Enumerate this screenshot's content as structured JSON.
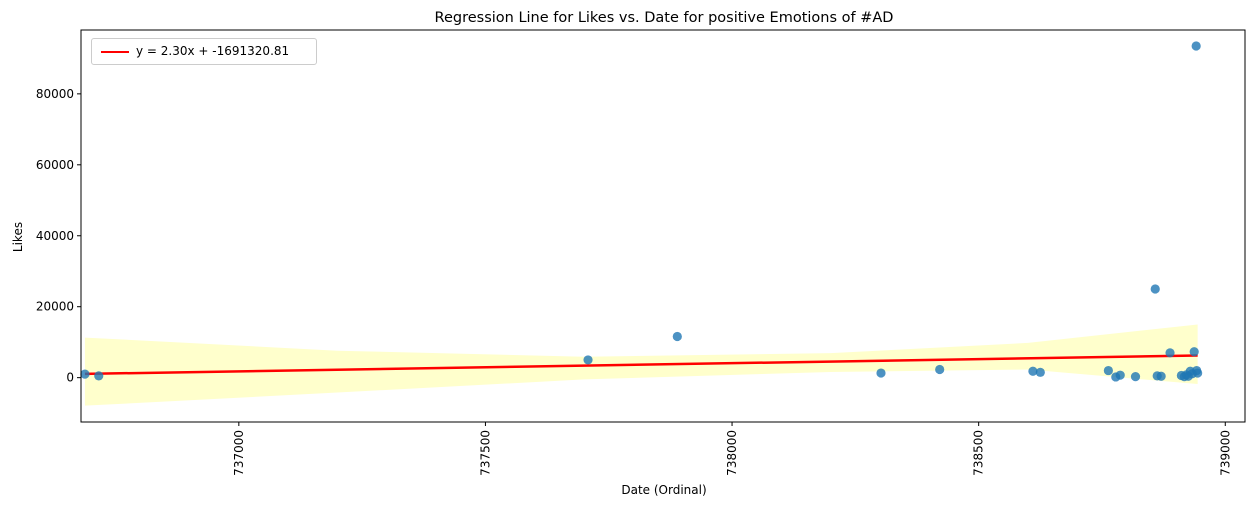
{
  "chart_data": {
    "type": "scatter",
    "title": "Regression Line for Likes vs. Date for positive Emotions of #AD",
    "xlabel": "Date (Ordinal)",
    "ylabel": "Likes",
    "xlim": [
      736680,
      739040
    ],
    "ylim": [
      -12500,
      98000
    ],
    "xticks": [
      737000,
      737500,
      738000,
      738500,
      739000
    ],
    "yticks": [
      0,
      20000,
      40000,
      60000,
      80000
    ],
    "grid": false,
    "legend_position": "top-left",
    "colors": {
      "points": "#1f77b4",
      "regression_line": "#ff0000",
      "confidence_band": "#ffffcc"
    },
    "series": [
      {
        "kind": "points",
        "x": [
          736688,
          736716,
          737708,
          737889,
          738302,
          738421,
          738610,
          738625,
          738763,
          738778,
          738787,
          738818,
          738858,
          738862,
          738870,
          738888,
          738911,
          738917,
          738921,
          738925,
          738929,
          738933,
          738937,
          738941,
          738944,
          738942
        ],
        "y": [
          1000,
          500,
          5000,
          11600,
          1300,
          2300,
          1800,
          1500,
          2000,
          200,
          700,
          300,
          25000,
          500,
          400,
          7000,
          600,
          300,
          800,
          400,
          1800,
          1100,
          7300,
          93500,
          1300,
          2000
        ]
      },
      {
        "kind": "regression",
        "name": "y = 2.30x + -1691320.81",
        "x": [
          736688,
          738944
        ],
        "y": [
          1062,
          6251
        ]
      },
      {
        "kind": "confidence_band",
        "x": [
          736688,
          737200,
          737700,
          738200,
          738600,
          738944
        ],
        "upper": [
          11300,
          7600,
          5900,
          6900,
          9800,
          15000
        ],
        "lower": [
          -7900,
          -4200,
          -500,
          1600,
          2300,
          -1800
        ]
      }
    ]
  }
}
